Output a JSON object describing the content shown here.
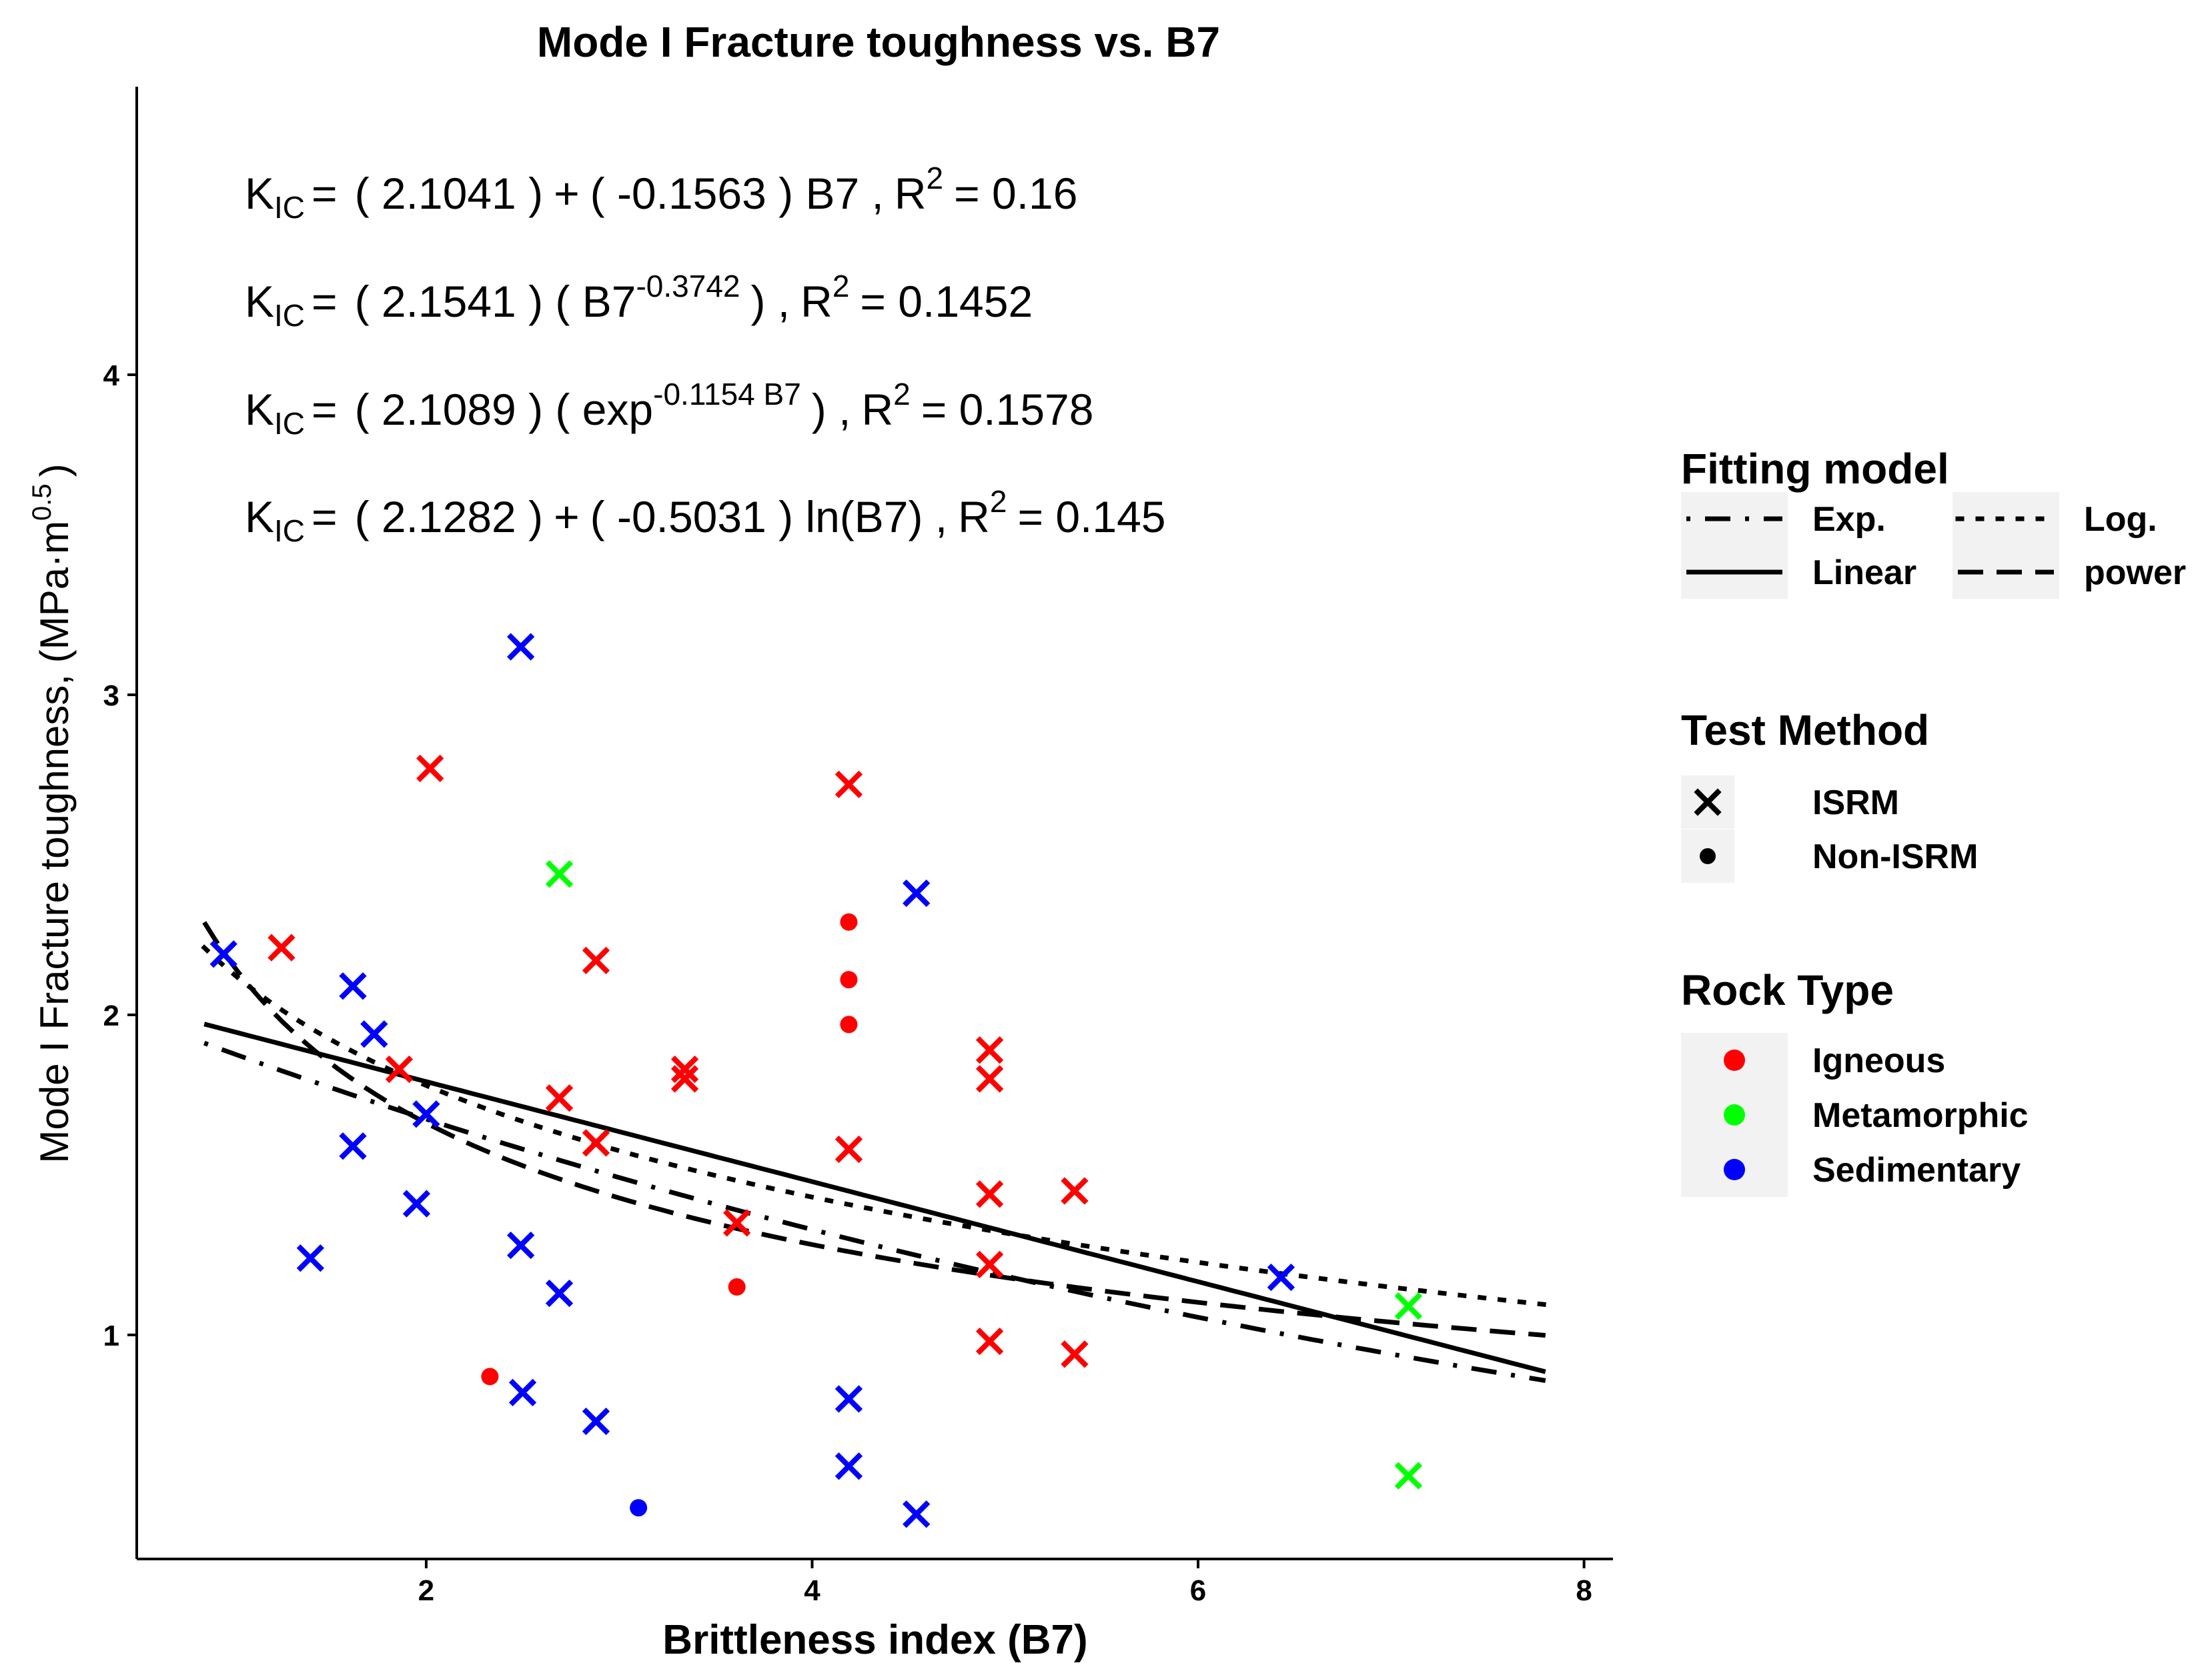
{
  "chart_data": {
    "type": "scatter",
    "title": "Mode I Fracture toughness vs. B7",
    "xlabel": "Brittleness index (B7)",
    "ylabel": {
      "main": "Mode I Fracture toughness, (MPa·m",
      "sup": "0.5",
      "close": ")"
    },
    "xlim": [
      0.5,
      8.15
    ],
    "ylim": [
      0.3,
      4.9
    ],
    "x_ticks": [
      {
        "value": 2,
        "label": "2"
      },
      {
        "value": 4,
        "label": "4"
      },
      {
        "value": 6,
        "label": "6"
      },
      {
        "value": 8,
        "label": "8"
      }
    ],
    "y_ticks": [
      {
        "value": 1,
        "label": "1"
      },
      {
        "value": 2,
        "label": "2"
      },
      {
        "value": 3,
        "label": "3"
      },
      {
        "value": 4,
        "label": "4"
      }
    ],
    "equations": [
      {
        "lhs": "K",
        "lhs_sub": "IC",
        "eq": "=",
        "parts": [
          {
            "t": "( 2.1041 )"
          },
          {
            "t": "+"
          },
          {
            "t": "( -0.1563 ) B7 ,"
          },
          {
            "t": "R"
          },
          {
            "sup": "2"
          },
          {
            "t": "= 0.16"
          }
        ]
      },
      {
        "lhs": "K",
        "lhs_sub": "IC",
        "eq": "=",
        "parts": [
          {
            "t": "( 2.1541 ) ( B7"
          },
          {
            "sup": "-0.3742"
          },
          {
            "t": ") ,"
          },
          {
            "t": "R"
          },
          {
            "sup": "2"
          },
          {
            "t": "= 0.1452"
          }
        ]
      },
      {
        "lhs": "K",
        "lhs_sub": "IC",
        "eq": "=",
        "parts": [
          {
            "t": "( 2.1089 ) ( exp"
          },
          {
            "sup": "-0.1154 B7"
          },
          {
            "t": ") ,"
          },
          {
            "t": "R"
          },
          {
            "sup": "2"
          },
          {
            "t": "= 0.1578"
          }
        ]
      },
      {
        "lhs": "K",
        "lhs_sub": "IC",
        "eq": "=",
        "parts": [
          {
            "t": "( 2.1282 )"
          },
          {
            "t": "+"
          },
          {
            "t": "( -0.5031 ) ln(B7) ,"
          },
          {
            "t": "R"
          },
          {
            "sup": "2"
          },
          {
            "t": "= 0.145"
          }
        ]
      }
    ],
    "fits": [
      {
        "name": "Linear",
        "model": "linear",
        "a": 2.1041,
        "b": -0.1563,
        "x_range": [
          0.85,
          7.8
        ],
        "dash": "solid"
      },
      {
        "name": "power",
        "model": "power",
        "a": 2.1541,
        "b": -0.3742,
        "x_range": [
          0.85,
          7.8
        ],
        "dash": "longdash"
      },
      {
        "name": "Exp.",
        "model": "exp",
        "a": 2.1089,
        "b": -0.1154,
        "x_range": [
          0.85,
          7.8
        ],
        "dash": "dotdash"
      },
      {
        "name": "Log.",
        "model": "log",
        "a": 2.1282,
        "b": -0.5031,
        "x_range": [
          0.85,
          7.8
        ],
        "dash": "dotted"
      }
    ],
    "rock_colors": {
      "Igneous": "#ff0000",
      "Metamorphic": "#00ff00",
      "Sedimentary": "#0000ff"
    },
    "points": [
      {
        "x": 0.95,
        "y": 2.19,
        "rock": "Sedimentary",
        "method": "ISRM"
      },
      {
        "x": 1.25,
        "y": 2.21,
        "rock": "Igneous",
        "method": "ISRM"
      },
      {
        "x": 1.4,
        "y": 1.24,
        "rock": "Sedimentary",
        "method": "ISRM"
      },
      {
        "x": 1.62,
        "y": 2.09,
        "rock": "Sedimentary",
        "method": "ISRM"
      },
      {
        "x": 1.62,
        "y": 1.59,
        "rock": "Sedimentary",
        "method": "ISRM"
      },
      {
        "x": 1.73,
        "y": 1.94,
        "rock": "Sedimentary",
        "method": "ISRM"
      },
      {
        "x": 1.86,
        "y": 1.83,
        "rock": "Igneous",
        "method": "ISRM"
      },
      {
        "x": 1.95,
        "y": 1.41,
        "rock": "Sedimentary",
        "method": "ISRM"
      },
      {
        "x": 2.0,
        "y": 1.69,
        "rock": "Sedimentary",
        "method": "ISRM"
      },
      {
        "x": 2.02,
        "y": 2.77,
        "rock": "Igneous",
        "method": "ISRM"
      },
      {
        "x": 2.33,
        "y": 0.87,
        "rock": "Igneous",
        "method": "Non-ISRM"
      },
      {
        "x": 2.49,
        "y": 3.15,
        "rock": "Sedimentary",
        "method": "ISRM"
      },
      {
        "x": 2.49,
        "y": 1.28,
        "rock": "Sedimentary",
        "method": "ISRM"
      },
      {
        "x": 2.5,
        "y": 0.82,
        "rock": "Sedimentary",
        "method": "ISRM"
      },
      {
        "x": 2.69,
        "y": 2.44,
        "rock": "Metamorphic",
        "method": "ISRM"
      },
      {
        "x": 2.69,
        "y": 1.74,
        "rock": "Igneous",
        "method": "ISRM"
      },
      {
        "x": 2.69,
        "y": 1.13,
        "rock": "Sedimentary",
        "method": "ISRM"
      },
      {
        "x": 2.88,
        "y": 2.17,
        "rock": "Igneous",
        "method": "ISRM"
      },
      {
        "x": 2.88,
        "y": 1.6,
        "rock": "Igneous",
        "method": "ISRM"
      },
      {
        "x": 2.88,
        "y": 0.73,
        "rock": "Sedimentary",
        "method": "ISRM"
      },
      {
        "x": 3.1,
        "y": 0.46,
        "rock": "Sedimentary",
        "method": "Non-ISRM"
      },
      {
        "x": 3.34,
        "y": 1.83,
        "rock": "Igneous",
        "method": "ISRM"
      },
      {
        "x": 3.34,
        "y": 1.8,
        "rock": "Igneous",
        "method": "ISRM"
      },
      {
        "x": 3.61,
        "y": 1.35,
        "rock": "Igneous",
        "method": "ISRM"
      },
      {
        "x": 3.61,
        "y": 1.15,
        "rock": "Igneous",
        "method": "Non-ISRM"
      },
      {
        "x": 4.19,
        "y": 2.72,
        "rock": "Igneous",
        "method": "ISRM"
      },
      {
        "x": 4.19,
        "y": 2.29,
        "rock": "Igneous",
        "method": "Non-ISRM"
      },
      {
        "x": 4.19,
        "y": 2.11,
        "rock": "Igneous",
        "method": "Non-ISRM"
      },
      {
        "x": 4.19,
        "y": 1.97,
        "rock": "Igneous",
        "method": "Non-ISRM"
      },
      {
        "x": 4.19,
        "y": 1.58,
        "rock": "Igneous",
        "method": "ISRM"
      },
      {
        "x": 4.19,
        "y": 0.8,
        "rock": "Sedimentary",
        "method": "ISRM"
      },
      {
        "x": 4.19,
        "y": 0.59,
        "rock": "Sedimentary",
        "method": "ISRM"
      },
      {
        "x": 4.54,
        "y": 2.38,
        "rock": "Sedimentary",
        "method": "ISRM"
      },
      {
        "x": 4.54,
        "y": 0.44,
        "rock": "Sedimentary",
        "method": "ISRM"
      },
      {
        "x": 4.92,
        "y": 1.89,
        "rock": "Igneous",
        "method": "ISRM"
      },
      {
        "x": 4.92,
        "y": 1.8,
        "rock": "Igneous",
        "method": "ISRM"
      },
      {
        "x": 4.92,
        "y": 1.44,
        "rock": "Igneous",
        "method": "ISRM"
      },
      {
        "x": 4.92,
        "y": 1.22,
        "rock": "Igneous",
        "method": "ISRM"
      },
      {
        "x": 4.92,
        "y": 0.98,
        "rock": "Igneous",
        "method": "ISRM"
      },
      {
        "x": 5.36,
        "y": 1.45,
        "rock": "Igneous",
        "method": "ISRM"
      },
      {
        "x": 5.36,
        "y": 0.94,
        "rock": "Igneous",
        "method": "ISRM"
      },
      {
        "x": 6.43,
        "y": 1.18,
        "rock": "Sedimentary",
        "method": "ISRM"
      },
      {
        "x": 7.09,
        "y": 1.09,
        "rock": "Metamorphic",
        "method": "ISRM"
      },
      {
        "x": 7.09,
        "y": 0.56,
        "rock": "Metamorphic",
        "method": "ISRM"
      }
    ],
    "legend": {
      "fitting": {
        "title": "Fitting model",
        "items": [
          {
            "label": "Exp.",
            "dash": "dotdash"
          },
          {
            "label": "Log.",
            "dash": "dotted"
          },
          {
            "label": "Linear",
            "dash": "solid"
          },
          {
            "label": "power",
            "dash": "longdash"
          }
        ]
      },
      "method": {
        "title": "Test Method",
        "items": [
          {
            "label": "ISRM",
            "shape": "cross"
          },
          {
            "label": "Non-ISRM",
            "shape": "dot"
          }
        ]
      },
      "rock": {
        "title": "Rock Type",
        "items": [
          {
            "label": "Igneous",
            "color": "#ff0000"
          },
          {
            "label": "Metamorphic",
            "color": "#00ff00"
          },
          {
            "label": "Sedimentary",
            "color": "#0000ff"
          }
        ]
      }
    }
  }
}
